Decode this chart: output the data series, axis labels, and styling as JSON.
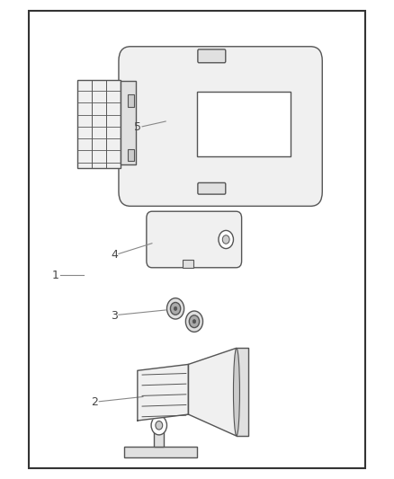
{
  "bg": "#ffffff",
  "border": "#333333",
  "lc": "#555555",
  "label_c": "#888888",
  "fill_light": "#f0f0f0",
  "fill_med": "#e0e0e0",
  "fill_dark": "#cccccc",
  "fill_darker": "#aaaaaa"
}
